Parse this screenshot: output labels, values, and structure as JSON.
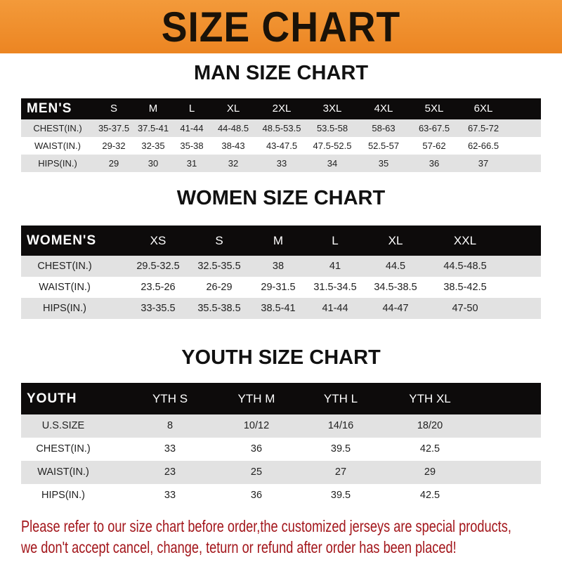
{
  "banner": {
    "title": "SIZE CHART",
    "color": "#ef8a26"
  },
  "men": {
    "title": "MAN SIZE CHART",
    "header_label": "MEN'S",
    "sizes": [
      "S",
      "M",
      "L",
      "XL",
      "2XL",
      "3XL",
      "4XL",
      "5XL",
      "6XL"
    ],
    "rows": [
      {
        "label": "CHEST(IN.)",
        "values": [
          "35-37.5",
          "37.5-41",
          "41-44",
          "44-48.5",
          "48.5-53.5",
          "53.5-58",
          "58-63",
          "63-67.5",
          "67.5-72"
        ]
      },
      {
        "label": "WAIST(IN.)",
        "values": [
          "29-32",
          "32-35",
          "35-38",
          "38-43",
          "43-47.5",
          "47.5-52.5",
          "52.5-57",
          "57-62",
          "62-66.5"
        ]
      },
      {
        "label": "HIPS(IN.)",
        "values": [
          "29",
          "30",
          "31",
          "32",
          "33",
          "34",
          "35",
          "36",
          "37"
        ]
      }
    ]
  },
  "women": {
    "title": "WOMEN SIZE CHART",
    "header_label": "WOMEN'S",
    "sizes": [
      "XS",
      "S",
      "M",
      "L",
      "XL",
      "XXL"
    ],
    "rows": [
      {
        "label": "CHEST(IN.)",
        "values": [
          "29.5-32.5",
          "32.5-35.5",
          "38",
          "41",
          "44.5",
          "44.5-48.5"
        ]
      },
      {
        "label": "WAIST(IN.)",
        "values": [
          "23.5-26",
          "26-29",
          "29-31.5",
          "31.5-34.5",
          "34.5-38.5",
          "38.5-42.5"
        ]
      },
      {
        "label": "HIPS(IN.)",
        "values": [
          "33-35.5",
          "35.5-38.5",
          "38.5-41",
          "41-44",
          "44-47",
          "47-50"
        ]
      }
    ]
  },
  "youth": {
    "title": "YOUTH SIZE CHART",
    "header_label": "YOUTH",
    "sizes": [
      "YTH S",
      "YTH M",
      "YTH L",
      "YTH XL"
    ],
    "rows": [
      {
        "label": "U.S.SIZE",
        "values": [
          "8",
          "10/12",
          "14/16",
          "18/20"
        ]
      },
      {
        "label": "CHEST(IN.)",
        "values": [
          "33",
          "36",
          "39.5",
          "42.5"
        ]
      },
      {
        "label": "WAIST(IN.)",
        "values": [
          "23",
          "25",
          "27",
          "29"
        ]
      },
      {
        "label": "HIPS(IN.)",
        "values": [
          "33",
          "36",
          "39.5",
          "42.5"
        ]
      }
    ]
  },
  "footer": {
    "line1": "Please refer to our size chart before order,the customized jerseys are special products,",
    "line2": "we don't accept cancel, change, teturn or refund after order has been placed!",
    "color": "#a3161b"
  }
}
